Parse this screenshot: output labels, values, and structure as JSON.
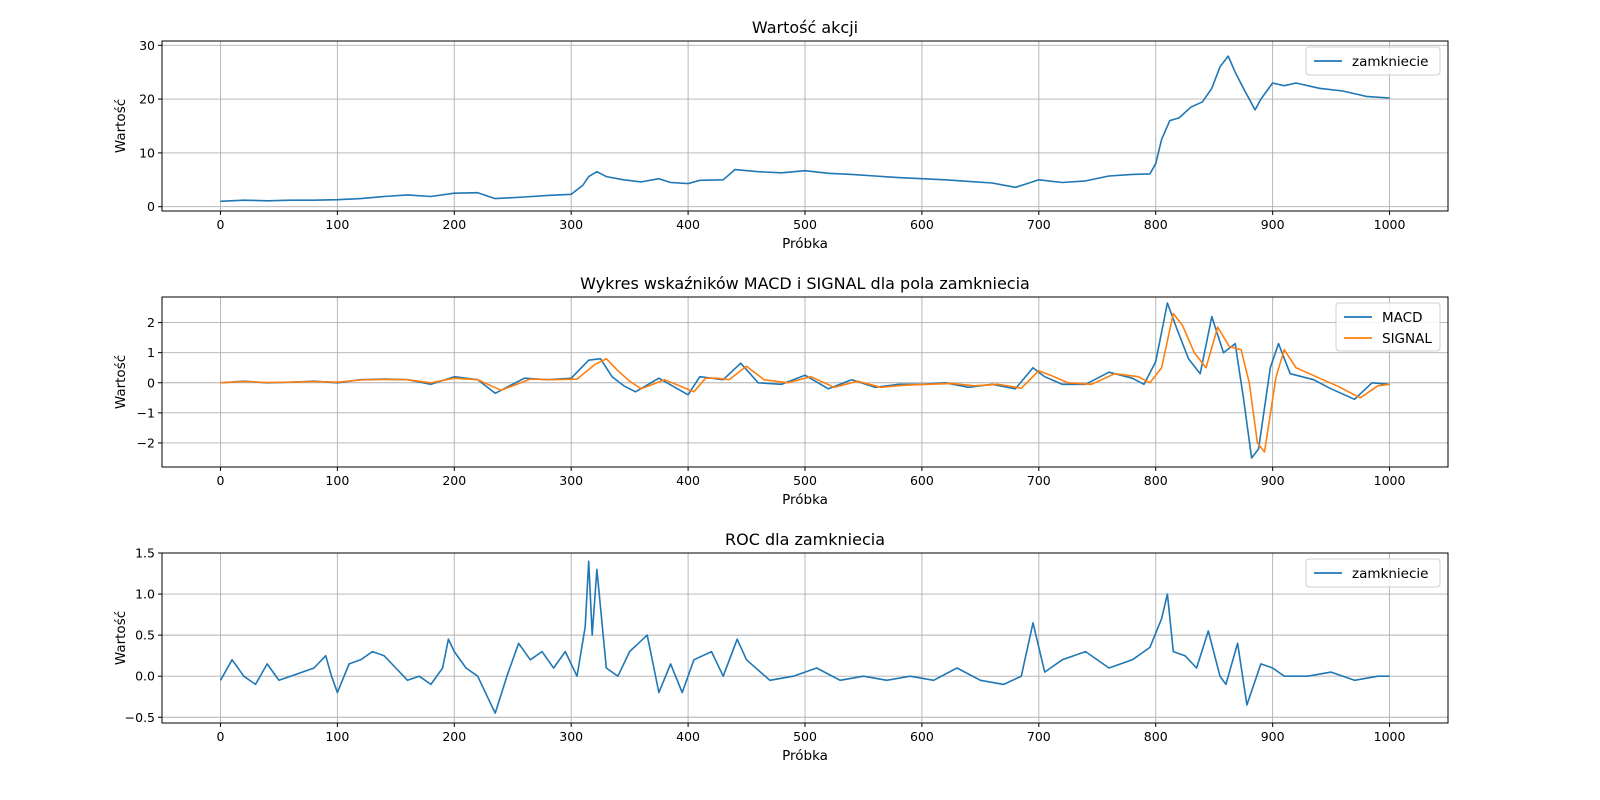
{
  "colors": {
    "series1": "#1f77b4",
    "series2": "#ff7f0e",
    "grid": "#b0b0b0"
  },
  "chart_data": [
    {
      "type": "line",
      "title": "Wartość akcji",
      "xlabel": "Próbka",
      "ylabel": "Wartość",
      "xlim": [
        -50,
        1050
      ],
      "ylim": [
        -0.8,
        30.8
      ],
      "xticks": [
        0,
        100,
        200,
        300,
        400,
        500,
        600,
        700,
        800,
        900,
        1000
      ],
      "yticks": [
        0,
        10,
        20,
        30
      ],
      "grid": true,
      "legend": "top-right",
      "series": [
        {
          "name": "zamkniecie",
          "x": [
            0,
            20,
            40,
            60,
            80,
            100,
            120,
            140,
            160,
            180,
            200,
            220,
            235,
            260,
            280,
            300,
            310,
            315,
            322,
            330,
            345,
            360,
            375,
            385,
            400,
            410,
            430,
            440,
            460,
            480,
            500,
            520,
            540,
            560,
            580,
            600,
            620,
            640,
            660,
            680,
            690,
            700,
            720,
            740,
            760,
            780,
            795,
            800,
            805,
            812,
            820,
            830,
            840,
            848,
            855,
            862,
            868,
            875,
            885,
            890,
            895,
            900,
            910,
            920,
            940,
            960,
            980,
            1000
          ],
          "values": [
            1.0,
            1.2,
            1.1,
            1.2,
            1.2,
            1.3,
            1.5,
            1.9,
            2.2,
            1.9,
            2.5,
            2.6,
            1.5,
            1.8,
            2.1,
            2.3,
            4.0,
            5.6,
            6.5,
            5.6,
            5.0,
            4.6,
            5.2,
            4.5,
            4.3,
            4.9,
            5.0,
            6.9,
            6.5,
            6.3,
            6.7,
            6.2,
            6.0,
            5.7,
            5.4,
            5.2,
            5.0,
            4.7,
            4.4,
            3.6,
            4.3,
            5.0,
            4.5,
            4.8,
            5.7,
            6.0,
            6.1,
            8.0,
            12.5,
            16.0,
            16.5,
            18.5,
            19.5,
            22.0,
            26.0,
            28.0,
            25.0,
            22.0,
            18.0,
            20.0,
            21.5,
            23.0,
            22.5,
            23.0,
            22.0,
            21.5,
            20.5,
            20.2
          ]
        }
      ]
    },
    {
      "type": "line",
      "title": "Wykres wskaźników MACD i SIGNAL dla pola zamkniecia",
      "xlabel": "Próbka",
      "ylabel": "Wartość",
      "xlim": [
        -50,
        1050
      ],
      "ylim": [
        -2.8,
        2.85
      ],
      "xticks": [
        0,
        100,
        200,
        300,
        400,
        500,
        600,
        700,
        800,
        900,
        1000
      ],
      "yticks": [
        -2,
        -1,
        0,
        1,
        2
      ],
      "ytick_labels": [
        "−2",
        "−1",
        "0",
        "1",
        "2"
      ],
      "grid": true,
      "legend": "top-right",
      "series": [
        {
          "name": "MACD",
          "x": [
            0,
            20,
            40,
            60,
            80,
            100,
            120,
            140,
            160,
            180,
            200,
            220,
            235,
            260,
            280,
            300,
            315,
            325,
            335,
            345,
            355,
            375,
            400,
            410,
            420,
            430,
            445,
            460,
            480,
            500,
            520,
            540,
            560,
            580,
            600,
            620,
            640,
            660,
            680,
            695,
            705,
            720,
            740,
            760,
            780,
            790,
            800,
            810,
            818,
            828,
            838,
            848,
            858,
            868,
            875,
            882,
            888,
            898,
            905,
            915,
            935,
            950,
            970,
            985,
            1000
          ],
          "values": [
            0.0,
            0.05,
            0.0,
            0.02,
            0.05,
            0.0,
            0.1,
            0.12,
            0.1,
            -0.05,
            0.2,
            0.1,
            -0.35,
            0.15,
            0.1,
            0.15,
            0.75,
            0.8,
            0.2,
            -0.1,
            -0.3,
            0.15,
            -0.4,
            0.2,
            0.15,
            0.1,
            0.65,
            0.0,
            -0.05,
            0.25,
            -0.2,
            0.1,
            -0.15,
            -0.05,
            -0.05,
            0.0,
            -0.15,
            -0.05,
            -0.2,
            0.5,
            0.2,
            -0.05,
            -0.05,
            0.35,
            0.15,
            -0.05,
            0.7,
            2.65,
            1.8,
            0.8,
            0.3,
            2.2,
            1.0,
            1.3,
            -0.5,
            -2.5,
            -2.2,
            0.5,
            1.3,
            0.3,
            0.1,
            -0.2,
            -0.55,
            0.0,
            -0.05
          ]
        },
        {
          "name": "SIGNAL",
          "x": [
            0,
            20,
            40,
            60,
            80,
            100,
            120,
            140,
            160,
            180,
            200,
            220,
            240,
            265,
            285,
            305,
            320,
            330,
            340,
            350,
            360,
            380,
            405,
            415,
            425,
            435,
            450,
            465,
            485,
            505,
            525,
            545,
            565,
            585,
            605,
            625,
            645,
            665,
            685,
            700,
            710,
            725,
            745,
            765,
            785,
            795,
            805,
            815,
            823,
            833,
            843,
            853,
            863,
            873,
            880,
            887,
            893,
            903,
            910,
            920,
            940,
            955,
            975,
            990,
            1000
          ],
          "values": [
            0.0,
            0.04,
            0.01,
            0.02,
            0.04,
            0.02,
            0.09,
            0.11,
            0.1,
            0.0,
            0.15,
            0.1,
            -0.25,
            0.12,
            0.1,
            0.12,
            0.6,
            0.8,
            0.4,
            0.05,
            -0.2,
            0.1,
            -0.3,
            0.15,
            0.15,
            0.1,
            0.55,
            0.1,
            0.0,
            0.2,
            -0.15,
            0.05,
            -0.15,
            -0.08,
            -0.05,
            -0.02,
            -0.1,
            -0.05,
            -0.18,
            0.4,
            0.25,
            0.0,
            -0.05,
            0.3,
            0.2,
            0.0,
            0.5,
            2.3,
            1.9,
            1.0,
            0.5,
            1.85,
            1.2,
            1.1,
            0.0,
            -2.0,
            -2.3,
            0.2,
            1.1,
            0.5,
            0.15,
            -0.1,
            -0.5,
            -0.1,
            -0.05
          ]
        }
      ]
    },
    {
      "type": "line",
      "title": "ROC dla zamkniecia",
      "xlabel": "Próbka",
      "ylabel": "Wartość",
      "xlim": [
        -50,
        1050
      ],
      "ylim": [
        -0.57,
        1.5
      ],
      "xticks": [
        0,
        100,
        200,
        300,
        400,
        500,
        600,
        700,
        800,
        900,
        1000
      ],
      "yticks": [
        -0.5,
        0.0,
        0.5,
        1.0,
        1.5
      ],
      "ytick_labels": [
        "−0.5",
        "0.0",
        "0.5",
        "1.0",
        "1.5"
      ],
      "grid": true,
      "legend": "top-right",
      "series": [
        {
          "name": "zamkniecie",
          "x": [
            0,
            10,
            20,
            30,
            40,
            50,
            60,
            70,
            80,
            90,
            95,
            100,
            110,
            120,
            130,
            140,
            150,
            160,
            170,
            180,
            190,
            195,
            200,
            210,
            220,
            230,
            235,
            245,
            255,
            265,
            275,
            285,
            295,
            305,
            312,
            315,
            318,
            322,
            330,
            340,
            350,
            365,
            375,
            385,
            395,
            405,
            420,
            430,
            442,
            450,
            470,
            490,
            510,
            530,
            550,
            570,
            590,
            610,
            630,
            650,
            670,
            685,
            695,
            705,
            720,
            740,
            760,
            780,
            795,
            805,
            810,
            815,
            825,
            835,
            845,
            855,
            860,
            870,
            878,
            890,
            900,
            910,
            930,
            950,
            970,
            990,
            1000
          ],
          "values": [
            -0.05,
            0.2,
            0.0,
            -0.1,
            0.15,
            -0.05,
            0.0,
            0.05,
            0.1,
            0.25,
            0.0,
            -0.2,
            0.15,
            0.2,
            0.3,
            0.25,
            0.1,
            -0.05,
            0.0,
            -0.1,
            0.1,
            0.45,
            0.3,
            0.1,
            0.0,
            -0.3,
            -0.45,
            0.0,
            0.4,
            0.2,
            0.3,
            0.1,
            0.3,
            0.0,
            0.6,
            1.4,
            0.5,
            1.3,
            0.1,
            0.0,
            0.3,
            0.5,
            -0.2,
            0.15,
            -0.2,
            0.2,
            0.3,
            0.0,
            0.45,
            0.2,
            -0.05,
            0.0,
            0.1,
            -0.05,
            0.0,
            -0.05,
            0.0,
            -0.05,
            0.1,
            -0.05,
            -0.1,
            0.0,
            0.65,
            0.05,
            0.2,
            0.3,
            0.1,
            0.2,
            0.35,
            0.7,
            1.0,
            0.3,
            0.25,
            0.1,
            0.55,
            0.0,
            -0.1,
            0.4,
            -0.35,
            0.15,
            0.1,
            0.0,
            0.0,
            0.05,
            -0.05,
            0.0,
            0.0
          ]
        }
      ]
    }
  ]
}
